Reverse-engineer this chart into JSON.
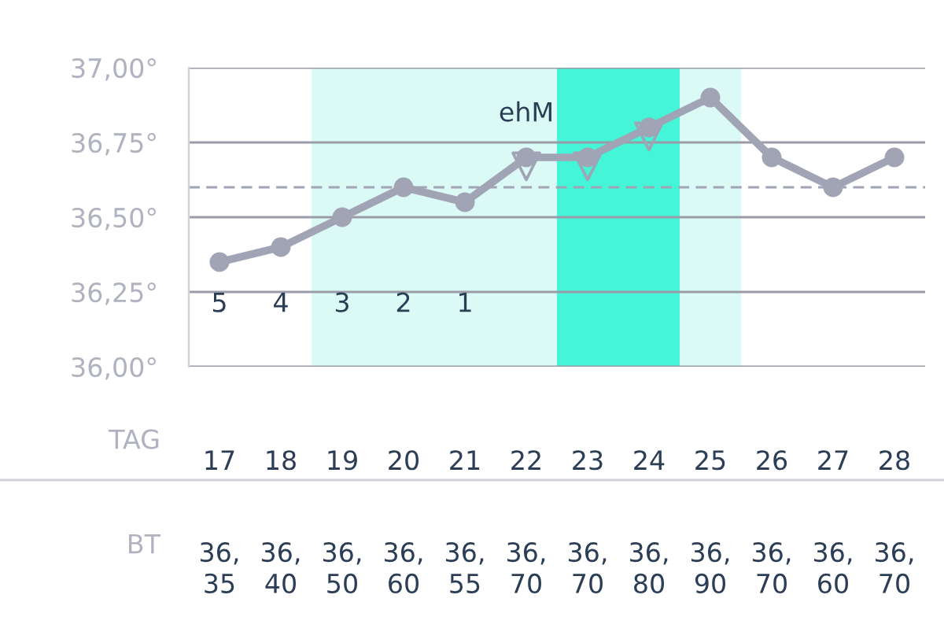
{
  "chart_data": {
    "type": "line",
    "categories": [
      "17",
      "18",
      "19",
      "20",
      "21",
      "22",
      "23",
      "24",
      "25",
      "26",
      "27",
      "28"
    ],
    "xlabel": "TAG",
    "ylabel": "BT",
    "series": [
      {
        "color": "#a0a4b4",
        "marker": "circle",
        "values": [
          36.35,
          36.4,
          36.5,
          36.6,
          36.55,
          36.7,
          36.7,
          36.8,
          36.9,
          36.7,
          36.6,
          36.7
        ],
        "value_labels": [
          "36,35",
          "36,40",
          "36,50",
          "36,60",
          "36,55",
          "36,70",
          "36,70",
          "36,80",
          "36,90",
          "36,70",
          "36,60",
          "36,70"
        ]
      },
      {
        "type": "scatter",
        "color": "#a0a4b4",
        "marker": "triangle",
        "values": [
          null,
          null,
          null,
          null,
          null,
          36.67,
          36.67,
          36.77,
          null,
          null,
          null,
          null
        ]
      }
    ],
    "ylim": [
      36.0,
      37.0
    ],
    "yticks": [
      {
        "value": 36.0,
        "label": "36,00°"
      },
      {
        "value": 36.25,
        "label": "36,25°"
      },
      {
        "value": 36.5,
        "label": "36,50°"
      },
      {
        "value": 36.75,
        "label": "36,75°"
      },
      {
        "value": 37.0,
        "label": "37,00°"
      }
    ],
    "grid": "y",
    "bands": [
      {
        "axis": "x",
        "from": "19",
        "to": "25",
        "color": "#dcfaf5"
      },
      {
        "axis": "x",
        "from": "23",
        "to": "24",
        "color": "#44f5d8"
      }
    ],
    "ref_lines": [
      {
        "axis": "y",
        "value": 36.6,
        "color": "#a0a4b4",
        "line_style": "dashed"
      }
    ],
    "annotations": [
      "5",
      "4",
      "3",
      "2",
      "1",
      {
        "text": "ehM",
        "x": "22",
        "y": 36.7
      }
    ]
  }
}
